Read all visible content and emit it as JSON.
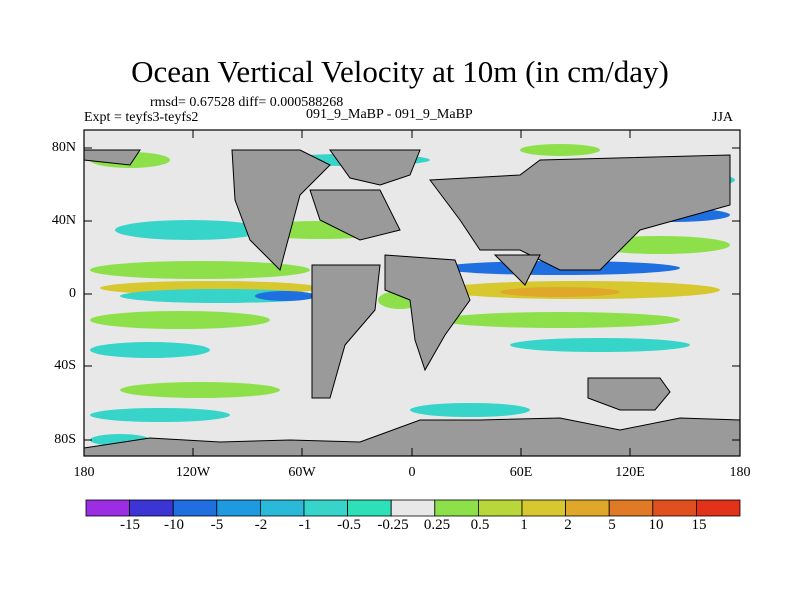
{
  "title": "Ocean Vertical Velocity at 10m (in cm/day)",
  "stats": "rmsd= 0.67528 diff= 0.000588268",
  "experiment": "Expt = teyfs3-teyfs2",
  "center_label": "091_9_MaBP - 091_9_MaBP",
  "season": "JJA",
  "colors": {
    "land": "#9a9a9a",
    "neutral": "#e8e8e8",
    "coast": "#000000"
  },
  "map": {
    "lat_labels": [
      "80N",
      "40N",
      "0",
      "40S",
      "80S"
    ],
    "lon_labels": [
      "180",
      "120W",
      "60W",
      "0",
      "60E",
      "120E",
      "180"
    ]
  },
  "colorbar": {
    "labels": [
      "-15",
      "-10",
      "-5",
      "-2",
      "-1",
      "-0.5",
      "-0.25",
      "0.25",
      "0.5",
      "1",
      "2",
      "5",
      "10",
      "15"
    ],
    "colors": [
      "#9b2ee3",
      "#3d34d6",
      "#1f6fe0",
      "#1e9be0",
      "#2ab9d8",
      "#36d4c9",
      "#2ee0b8",
      "#e8e8e8",
      "#8de04a",
      "#b9d63a",
      "#d6c82e",
      "#e0a82a",
      "#e07a24",
      "#e0501e",
      "#e2321a"
    ]
  }
}
